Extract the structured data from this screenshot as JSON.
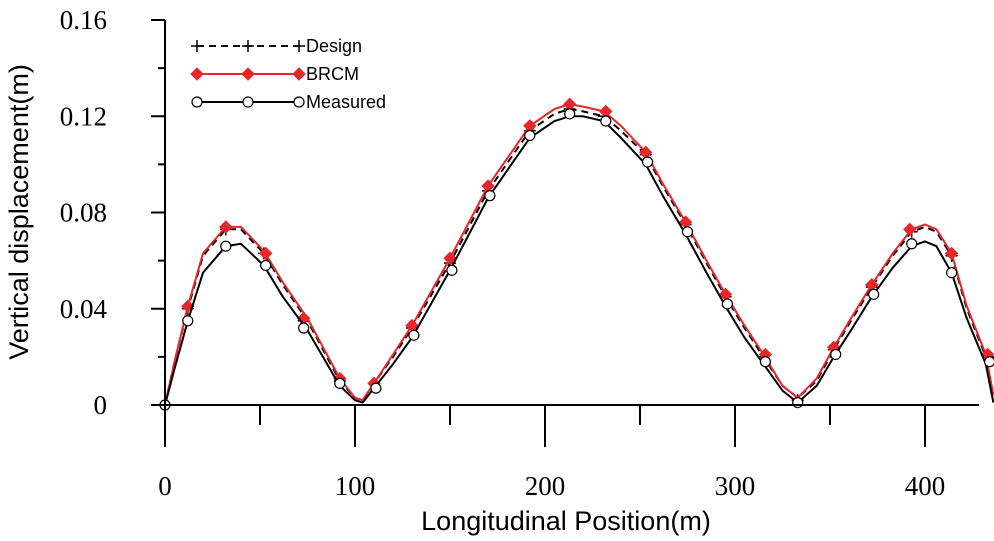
{
  "chart_data": {
    "type": "line",
    "xlabel": "Longitudinal Position(m)",
    "ylabel": "Vertical displacement(m)",
    "xlim": [
      0,
      436
    ],
    "ylim": [
      0,
      0.16
    ],
    "xticks": [
      0,
      100,
      200,
      300,
      400
    ],
    "yticks": [
      0,
      0.04,
      0.08,
      0.12,
      0.16
    ],
    "ytick_labels": [
      "0",
      "0.04",
      "0.08",
      "0.12",
      "0.16"
    ],
    "grid": false,
    "legend_position": "top-left",
    "series": [
      {
        "name": "Design",
        "color": "#000000",
        "line_style": "dashed",
        "marker": "plus",
        "x": [
          0,
          5,
          12,
          20,
          32,
          40,
          52,
          62,
          75,
          92,
          100,
          104,
          110,
          120,
          130,
          150,
          170,
          192,
          205,
          213,
          220,
          231,
          240,
          253,
          262,
          274,
          285,
          295,
          305,
          315,
          325,
          333,
          343,
          352,
          361,
          372,
          383,
          393,
          400,
          406,
          414,
          422,
          432,
          436
        ],
        "y": [
          0,
          0.018,
          0.04,
          0.062,
          0.073,
          0.073,
          0.063,
          0.05,
          0.035,
          0.01,
          0.003,
          0.002,
          0.009,
          0.02,
          0.032,
          0.059,
          0.089,
          0.114,
          0.121,
          0.123,
          0.122,
          0.12,
          0.114,
          0.104,
          0.091,
          0.075,
          0.059,
          0.045,
          0.032,
          0.02,
          0.008,
          0.003,
          0.01,
          0.023,
          0.035,
          0.049,
          0.062,
          0.072,
          0.074,
          0.072,
          0.062,
          0.04,
          0.02,
          0.004
        ],
        "marker_x": [
          0,
          12,
          32,
          52,
          73,
          92,
          110,
          130,
          150,
          170,
          192,
          213,
          231,
          253,
          274,
          295,
          315,
          333,
          352,
          372,
          393,
          414,
          434
        ],
        "marker_y": [
          0,
          0.04,
          0.073,
          0.063,
          0.035,
          0.01,
          0.009,
          0.032,
          0.059,
          0.089,
          0.114,
          0.123,
          0.12,
          0.104,
          0.075,
          0.045,
          0.02,
          0.002,
          0.023,
          0.049,
          0.072,
          0.062,
          0.02
        ]
      },
      {
        "name": "BRCM",
        "color": "#e8262b",
        "line_style": "solid",
        "marker": "diamond",
        "x": [
          0,
          5,
          12,
          20,
          32,
          40,
          52,
          62,
          75,
          92,
          100,
          104,
          110,
          120,
          130,
          150,
          170,
          192,
          205,
          213,
          220,
          231,
          240,
          253,
          262,
          274,
          285,
          295,
          305,
          315,
          325,
          333,
          343,
          352,
          361,
          372,
          383,
          393,
          400,
          406,
          414,
          422,
          432,
          436
        ],
        "y": [
          0,
          0.018,
          0.041,
          0.063,
          0.074,
          0.074,
          0.064,
          0.051,
          0.036,
          0.011,
          0.003,
          0.002,
          0.009,
          0.021,
          0.033,
          0.061,
          0.091,
          0.116,
          0.123,
          0.125,
          0.124,
          0.122,
          0.116,
          0.105,
          0.092,
          0.076,
          0.06,
          0.046,
          0.033,
          0.021,
          0.008,
          0.003,
          0.011,
          0.024,
          0.036,
          0.05,
          0.063,
          0.073,
          0.075,
          0.073,
          0.063,
          0.041,
          0.021,
          0.004
        ],
        "marker_x": [
          12,
          32,
          53,
          73,
          92,
          110,
          130,
          150,
          170,
          192,
          213,
          232,
          253,
          274,
          295,
          316,
          352,
          372,
          392,
          414,
          433
        ],
        "marker_y": [
          0.041,
          0.074,
          0.063,
          0.036,
          0.011,
          0.009,
          0.033,
          0.061,
          0.091,
          0.116,
          0.125,
          0.122,
          0.105,
          0.076,
          0.046,
          0.021,
          0.024,
          0.05,
          0.073,
          0.063,
          0.021
        ]
      },
      {
        "name": "Measured",
        "color": "#000000",
        "line_style": "solid",
        "marker": "open-circle",
        "x": [
          0,
          5,
          12,
          20,
          32,
          40,
          52,
          62,
          75,
          92,
          100,
          104,
          110,
          120,
          130,
          150,
          170,
          192,
          205,
          213,
          220,
          231,
          240,
          253,
          262,
          274,
          285,
          295,
          305,
          315,
          325,
          333,
          343,
          352,
          361,
          372,
          383,
          393,
          400,
          406,
          414,
          422,
          432,
          436
        ],
        "y": [
          0,
          0.015,
          0.035,
          0.055,
          0.066,
          0.067,
          0.058,
          0.045,
          0.031,
          0.008,
          0.002,
          0.001,
          0.007,
          0.017,
          0.028,
          0.056,
          0.086,
          0.111,
          0.118,
          0.12,
          0.12,
          0.118,
          0.111,
          0.1,
          0.087,
          0.071,
          0.055,
          0.041,
          0.028,
          0.017,
          0.006,
          0.001,
          0.008,
          0.02,
          0.031,
          0.045,
          0.057,
          0.066,
          0.068,
          0.066,
          0.055,
          0.036,
          0.017,
          0.001
        ],
        "marker_x": [
          0,
          12,
          32,
          53,
          73,
          92,
          111,
          131,
          151,
          171,
          192,
          213,
          232,
          254,
          275,
          296,
          316,
          333,
          353,
          373,
          393,
          414,
          434
        ],
        "marker_y": [
          0,
          0.035,
          0.066,
          0.058,
          0.032,
          0.009,
          0.007,
          0.029,
          0.056,
          0.087,
          0.112,
          0.121,
          0.118,
          0.101,
          0.072,
          0.042,
          0.018,
          0.001,
          0.021,
          0.046,
          0.067,
          0.055,
          0.018
        ]
      }
    ]
  }
}
